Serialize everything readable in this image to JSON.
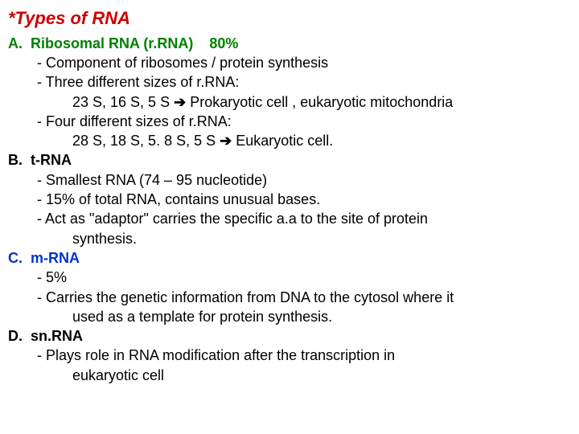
{
  "title": "*Types of RNA",
  "colors": {
    "title": "#cc0000",
    "a_heading": "#008000",
    "c_heading": "#0033cc",
    "body": "#000000"
  },
  "fontsize": {
    "title": 22,
    "body": 18
  },
  "A": {
    "label": "A.  Ribosomal RNA (r.RNA)    80%",
    "l1": "- Component of ribosomes / protein synthesis",
    "l2": "- Three different sizes of r.RNA:",
    "l3a": "23 S, 16 S, 5 S ",
    "l3arrow": "➔",
    "l3b": " Prokaryotic cell , eukaryotic mitochondria",
    "l4": "- Four different sizes of r.RNA:",
    "l5a": "28 S, 18 S, 5. 8 S, 5 S ",
    "l5arrow": "➔",
    "l5b": " Eukaryotic cell."
  },
  "B": {
    "label": "B.  t-RNA",
    "l1": "- Smallest RNA (74 – 95 nucleotide)",
    "l2": "- 15% of total RNA, contains unusual bases.",
    "l3": "- Act as \"adaptor\" carries the specific a.a to the site of protein",
    "l3b": "synthesis."
  },
  "C": {
    "label": "C.  m-RNA",
    "l1": "- 5%",
    "l2": "- Carries the genetic information from DNA to the cytosol where it",
    "l2b": "used as a template for protein synthesis."
  },
  "D": {
    "label": "D.  sn.RNA",
    "l1": "- Plays role in RNA modification after the transcription in",
    "l1b": "eukaryotic cell"
  }
}
